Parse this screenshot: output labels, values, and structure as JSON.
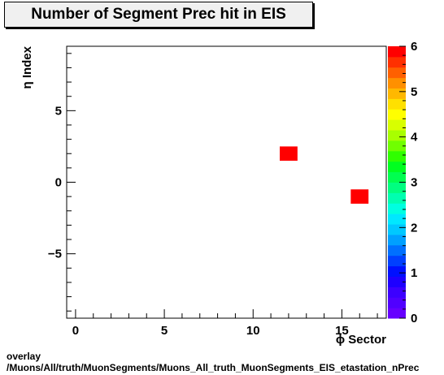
{
  "chart_data": {
    "type": "heatmap",
    "title": "Number of Segment Prec hit in EIS",
    "xlabel": "ϕ Sector",
    "ylabel": "η Index",
    "xlim": [
      -0.5,
      17.5
    ],
    "ylim": [
      -9.5,
      9.5
    ],
    "zlim": [
      0,
      6
    ],
    "x_ticks": [
      0,
      5,
      10,
      15
    ],
    "y_ticks": [
      -5,
      0,
      5
    ],
    "z_ticks": [
      0,
      1,
      2,
      3,
      4,
      5,
      6
    ],
    "cells": [
      {
        "x": 12,
        "y": 2,
        "value": 6
      },
      {
        "x": 16,
        "y": -1,
        "value": 6
      }
    ],
    "grid": false,
    "palette": [
      "#6600ff",
      "#5000ff",
      "#3c00ff",
      "#1e00ff",
      "#0010ff",
      "#0040ff",
      "#0070ff",
      "#00a0ff",
      "#00c8ff",
      "#00e8ff",
      "#00ffe0",
      "#00ffb0",
      "#00ff80",
      "#00ff50",
      "#00ff20",
      "#30ff00",
      "#70ff00",
      "#a8ff00",
      "#d8ff00",
      "#ffff00",
      "#ffe000",
      "#ffb800",
      "#ff9000",
      "#ff6000",
      "#ff3000",
      "#ff0000"
    ]
  },
  "footer": {
    "line1": "overlay",
    "line2": "/Muons/All/truth/MuonSegments/Muons_All_truth_MuonSegments_EIS_etastation_nPrec"
  }
}
